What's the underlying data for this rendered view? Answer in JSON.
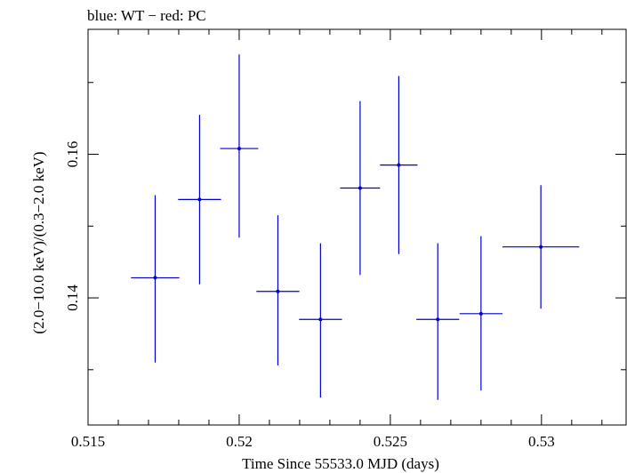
{
  "chart_data": {
    "type": "scatter",
    "title": "blue: WT − red: PC",
    "xlabel": "Time Since 55533.0 MJD (days)",
    "ylabel": "(2.0−10.0 keV)/(0.3−2.0 keV)",
    "xlim": [
      0.515,
      0.5328
    ],
    "ylim": [
      0.1223,
      0.1774
    ],
    "x_ticks": [
      0.515,
      0.52,
      0.525,
      0.53
    ],
    "x_tick_labels": [
      "0.515",
      "0.52",
      "0.525",
      "0.53"
    ],
    "y_ticks": [
      0.14,
      0.16
    ],
    "y_tick_labels": [
      "0.14",
      "0.16"
    ],
    "grid": false,
    "series": [
      {
        "color": "#0000cc",
        "points": [
          {
            "x": 0.51722,
            "y": 0.1428,
            "xerr": 0.0008,
            "yerr_low": 0.0118,
            "yerr_high": 0.0115
          },
          {
            "x": 0.51869,
            "y": 0.1537,
            "xerr": 0.00071,
            "yerr_low": 0.0118,
            "yerr_high": 0.0118
          },
          {
            "x": 0.52,
            "y": 0.1608,
            "xerr": 0.00063,
            "yerr_low": 0.0124,
            "yerr_high": 0.0131
          },
          {
            "x": 0.52128,
            "y": 0.1409,
            "xerr": 0.00071,
            "yerr_low": 0.0103,
            "yerr_high": 0.0106
          },
          {
            "x": 0.52269,
            "y": 0.137,
            "xerr": 0.00071,
            "yerr_low": 0.0109,
            "yerr_high": 0.0106
          },
          {
            "x": 0.524,
            "y": 0.1553,
            "xerr": 0.00066,
            "yerr_low": 0.0121,
            "yerr_high": 0.0121
          },
          {
            "x": 0.52528,
            "y": 0.1585,
            "xerr": 0.00062,
            "yerr_low": 0.0124,
            "yerr_high": 0.0124
          },
          {
            "x": 0.52657,
            "y": 0.137,
            "xerr": 0.00071,
            "yerr_low": 0.0112,
            "yerr_high": 0.0106
          },
          {
            "x": 0.528,
            "y": 0.1378,
            "xerr": 0.00071,
            "yerr_low": 0.0107,
            "yerr_high": 0.0108
          },
          {
            "x": 0.52998,
            "y": 0.1471,
            "xerr": 0.00127,
            "yerr_low": 0.0086,
            "yerr_high": 0.0086
          }
        ]
      }
    ]
  }
}
